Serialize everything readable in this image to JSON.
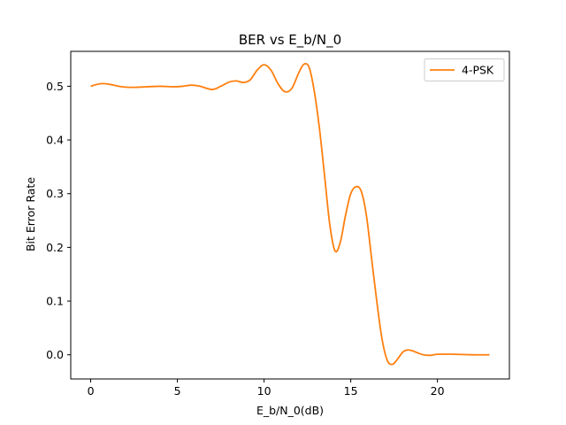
{
  "chart_data": {
    "type": "line",
    "title": "BER vs E_b/N_0",
    "xlabel": "E_b/N_0(dB)",
    "ylabel": "Bit Error Rate",
    "xlim": [
      -1.15,
      24.15
    ],
    "ylim": [
      -0.045,
      0.565
    ],
    "xticks": [
      0,
      5,
      10,
      15,
      20
    ],
    "xtick_labels": [
      "0",
      "5",
      "10",
      "15",
      "20"
    ],
    "yticks": [
      0.0,
      0.1,
      0.2,
      0.3,
      0.4,
      0.5
    ],
    "ytick_labels": [
      "0.0",
      "0.1",
      "0.2",
      "0.3",
      "0.4",
      "0.5"
    ],
    "grid": false,
    "legend_position": "top-right",
    "series": [
      {
        "name": "4-PSK",
        "color": "#ff7f0e",
        "x": [
          0,
          0.3,
          0.7,
          1.2,
          1.8,
          2.5,
          3.2,
          4.0,
          4.8,
          5.3,
          5.8,
          6.3,
          7.0,
          7.5,
          8.0,
          8.4,
          8.8,
          9.2,
          9.6,
          10.0,
          10.4,
          10.8,
          11.2,
          11.6,
          12.0,
          12.3,
          12.6,
          12.9,
          13.2,
          13.5,
          13.8,
          14.1,
          14.4,
          14.7,
          15.0,
          15.3,
          15.6,
          15.9,
          16.2,
          16.5,
          16.8,
          17.1,
          17.4,
          17.7,
          18.0,
          18.3,
          18.6,
          18.9,
          19.2,
          19.6,
          20.0,
          21.0,
          22.0,
          23.0
        ],
        "y": [
          0.5,
          0.503,
          0.505,
          0.503,
          0.499,
          0.498,
          0.499,
          0.5,
          0.499,
          0.5,
          0.502,
          0.5,
          0.494,
          0.5,
          0.508,
          0.51,
          0.507,
          0.512,
          0.53,
          0.54,
          0.53,
          0.505,
          0.49,
          0.496,
          0.525,
          0.541,
          0.535,
          0.49,
          0.42,
          0.33,
          0.24,
          0.193,
          0.21,
          0.26,
          0.3,
          0.313,
          0.305,
          0.26,
          0.18,
          0.1,
          0.03,
          -0.01,
          -0.018,
          -0.008,
          0.005,
          0.009,
          0.007,
          0.003,
          0.0,
          -0.001,
          0.001,
          0.001,
          0.0,
          0.0
        ]
      }
    ]
  }
}
